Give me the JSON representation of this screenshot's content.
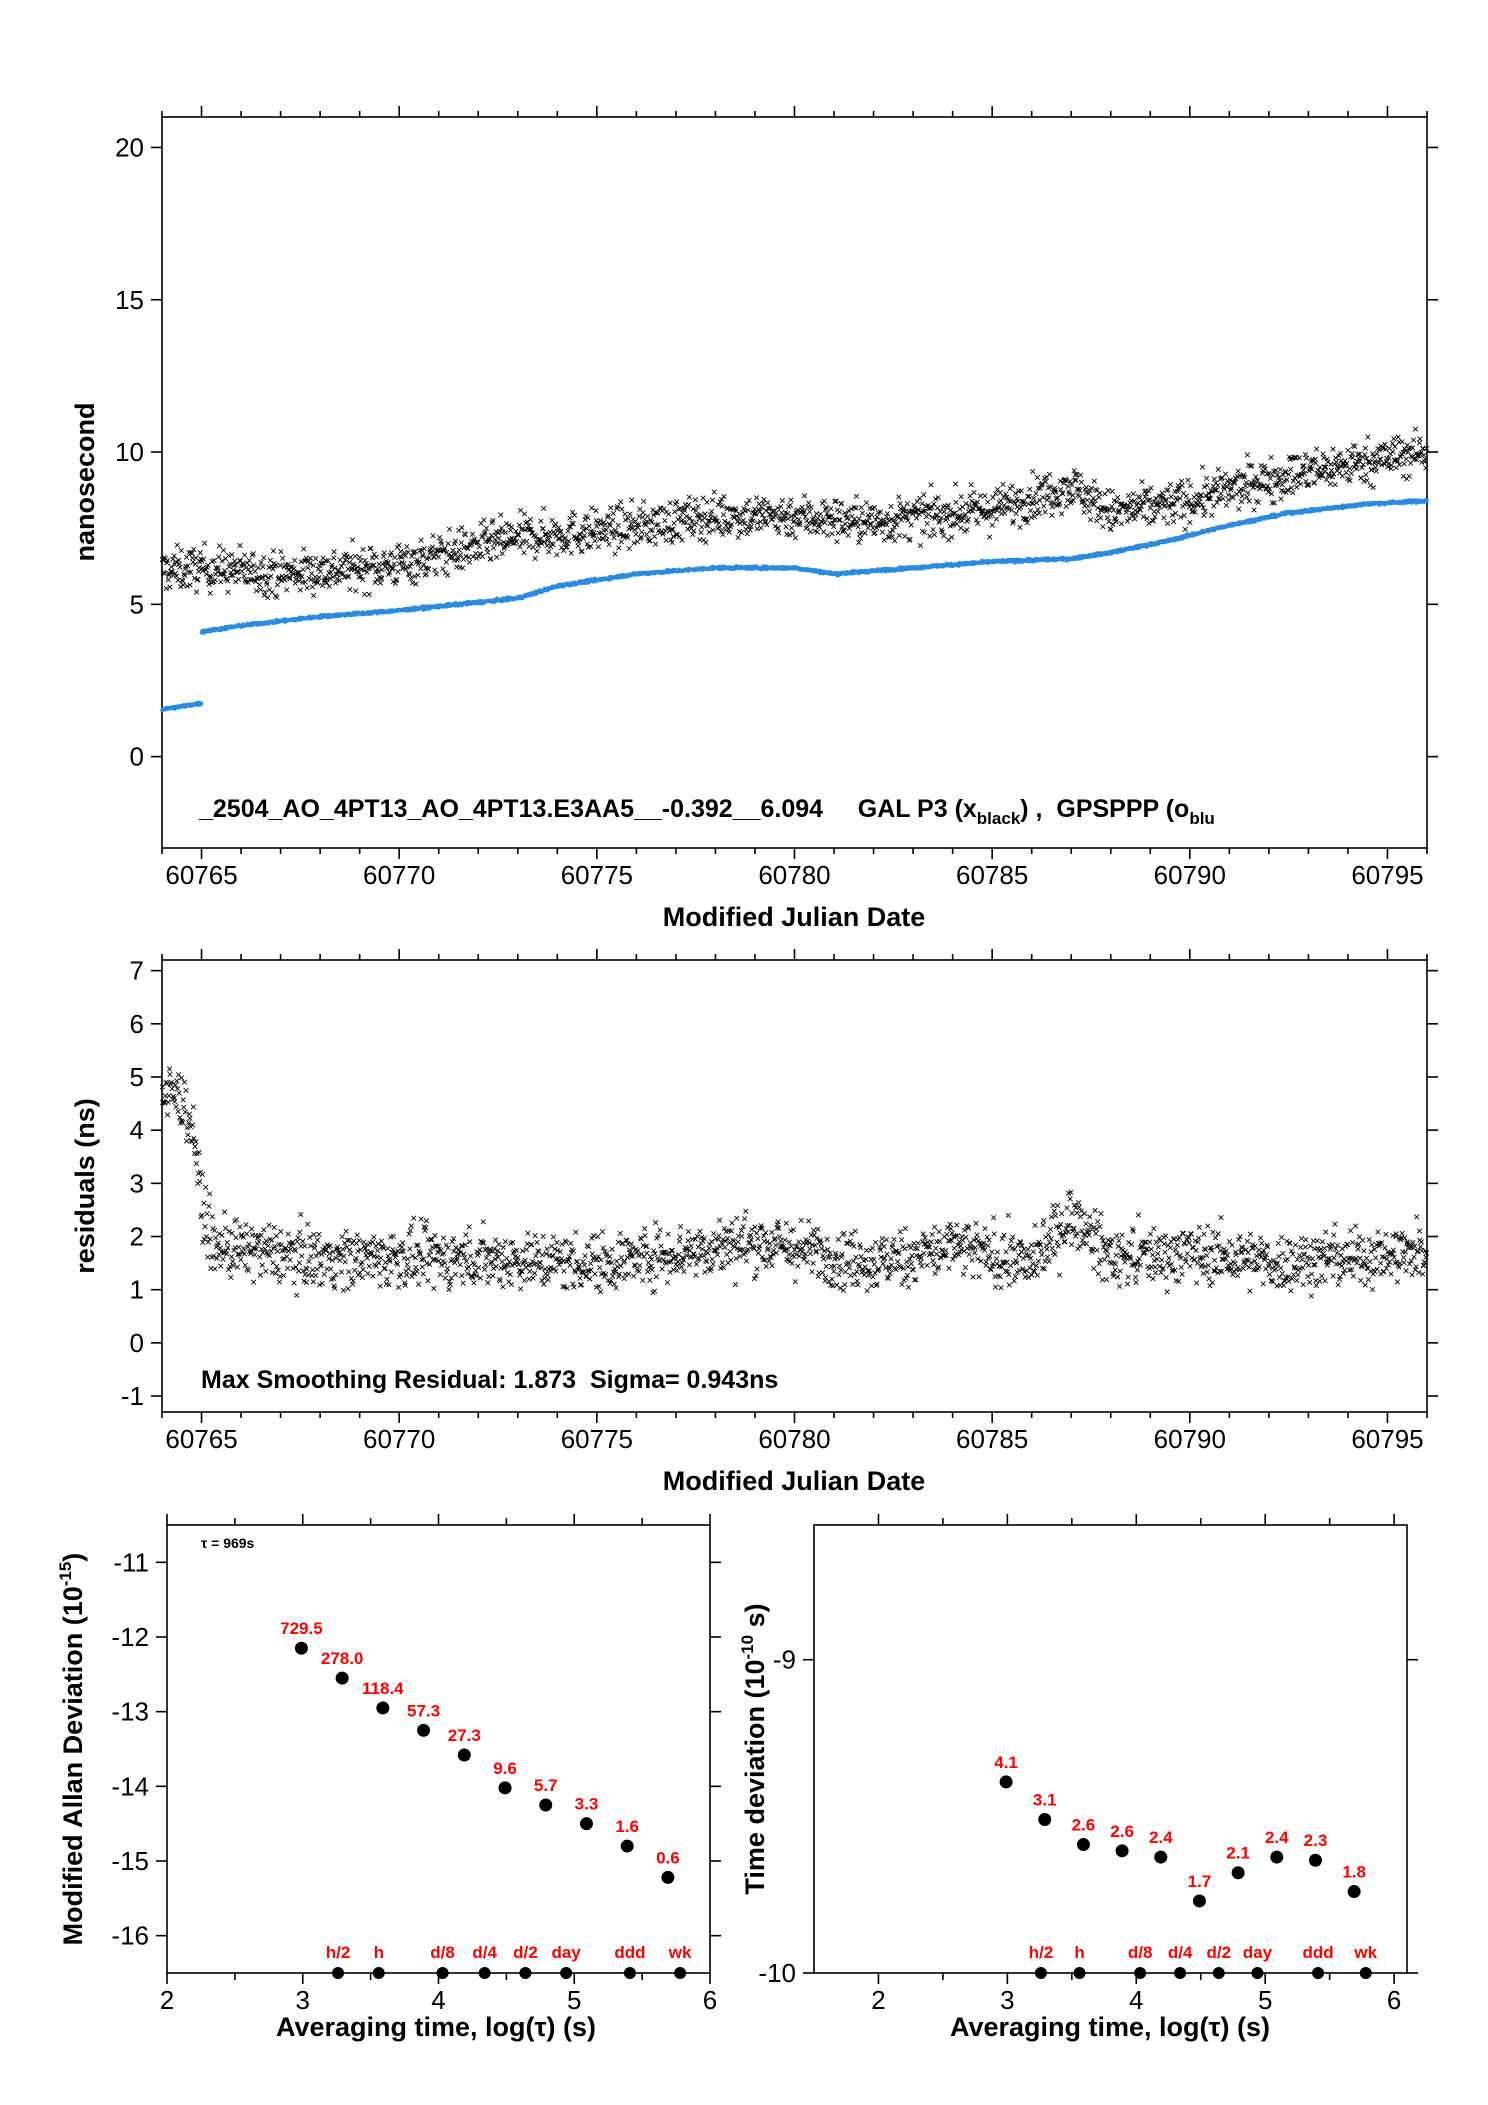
{
  "chart_data": [
    {
      "id": "phase",
      "type": "scatter",
      "xlabel": "Modified Julian Date",
      "ylabel": "nanosecond",
      "xlim": [
        60764.0,
        60796.0
      ],
      "ylim": [
        -3,
        21
      ],
      "xticks": [
        60765,
        60770,
        60775,
        60780,
        60785,
        60790,
        60795
      ],
      "yticks": [
        0,
        5,
        10,
        15,
        20
      ],
      "annotation": {
        "prefix": "_2504_AO_4PT13_AO_4PT13.E3AA5__-0.392__6.094     GAL P3 (x",
        "sub1": "black",
        "middle": ") ,  GPSPPP (o",
        "sub2": "blu"
      },
      "series": [
        {
          "marker": "x",
          "color": "#000000",
          "density_per_day": 60,
          "scatter": 0.65,
          "trend": [
            [
              60764.0,
              6.1
            ],
            [
              60765.0,
              6.2
            ],
            [
              60767.0,
              6.0
            ],
            [
              60770.0,
              6.3
            ],
            [
              60773.0,
              7.2
            ],
            [
              60775.0,
              7.4
            ],
            [
              60778.0,
              7.9
            ],
            [
              60780.0,
              7.9
            ],
            [
              60782.0,
              7.7
            ],
            [
              60785.0,
              8.1
            ],
            [
              60787.0,
              8.9
            ],
            [
              60788.0,
              8.0
            ],
            [
              60790.0,
              8.4
            ],
            [
              60792.0,
              9.1
            ],
            [
              60794.0,
              9.6
            ],
            [
              60796.0,
              10.0
            ]
          ]
        },
        {
          "marker": "o",
          "color": "#2a8be0",
          "density_per_day": 100,
          "scatter": 0.05,
          "segments": [
            [
              [
                60764.0,
                1.55
              ],
              [
                60764.5,
                1.65
              ],
              [
                60765.0,
                1.75
              ]
            ],
            [
              [
                60765.0,
                4.1
              ],
              [
                60766.0,
                4.3
              ],
              [
                60768.0,
                4.6
              ],
              [
                60770.0,
                4.8
              ],
              [
                60773.0,
                5.2
              ],
              [
                60774.0,
                5.6
              ],
              [
                60776.0,
                6.0
              ],
              [
                60778.0,
                6.2
              ],
              [
                60780.0,
                6.2
              ],
              [
                60781.0,
                6.0
              ],
              [
                60783.0,
                6.2
              ],
              [
                60785.0,
                6.4
              ],
              [
                60787.0,
                6.5
              ],
              [
                60788.0,
                6.7
              ],
              [
                60789.5,
                7.1
              ],
              [
                60791.0,
                7.6
              ],
              [
                60792.5,
                8.0
              ],
              [
                60794.5,
                8.3
              ],
              [
                60796.0,
                8.4
              ]
            ]
          ]
        }
      ]
    },
    {
      "id": "residuals",
      "type": "scatter",
      "xlabel": "Modified Julian Date",
      "ylabel": "residuals (ns)",
      "xlim": [
        60764.0,
        60796.0
      ],
      "ylim": [
        -1.3,
        7.2
      ],
      "xticks": [
        60765,
        60770,
        60775,
        60780,
        60785,
        60790,
        60795
      ],
      "yticks": [
        -1,
        0,
        1,
        2,
        3,
        4,
        5,
        6,
        7
      ],
      "annotation": "Max Smoothing Residual: 1.873  Sigma= 0.943ns",
      "series": [
        {
          "marker": "x",
          "color": "#000000",
          "density_per_day": 60,
          "scatter": 0.5,
          "trend": [
            [
              60764.0,
              4.7
            ],
            [
              60764.5,
              4.6
            ],
            [
              60764.8,
              4.0
            ],
            [
              60765.0,
              2.6
            ],
            [
              60765.3,
              1.8
            ],
            [
              60768.0,
              1.6
            ],
            [
              60772.0,
              1.6
            ],
            [
              60775.0,
              1.5
            ],
            [
              60779.0,
              1.9
            ],
            [
              60782.0,
              1.5
            ],
            [
              60784.0,
              1.8
            ],
            [
              60786.0,
              1.5
            ],
            [
              60787.0,
              2.4
            ],
            [
              60788.0,
              1.6
            ],
            [
              60790.0,
              1.7
            ],
            [
              60792.0,
              1.5
            ],
            [
              60794.0,
              1.6
            ],
            [
              60796.0,
              1.7
            ]
          ]
        }
      ]
    },
    {
      "id": "mdev",
      "type": "scatter",
      "xlabel": "Averaging time, log(τ) (s)",
      "ylabel": "Modified Allan Deviation (10",
      "ylabel_sup": "-15",
      "ylabel_end": ")",
      "xlim": [
        2,
        6
      ],
      "ylim": [
        -16.5,
        -10.5
      ],
      "xticks": [
        2,
        3,
        4,
        5,
        6
      ],
      "yticks": [
        -16,
        -15,
        -14,
        -13,
        -12,
        -11
      ],
      "tau_note": "τ = 969s",
      "points": [
        {
          "x": 2.99,
          "y": -12.15,
          "label": "729.5"
        },
        {
          "x": 3.29,
          "y": -12.55,
          "label": "278.0"
        },
        {
          "x": 3.59,
          "y": -12.95,
          "label": "118.4"
        },
        {
          "x": 3.89,
          "y": -13.25,
          "label": "57.3"
        },
        {
          "x": 4.19,
          "y": -13.58,
          "label": "27.3"
        },
        {
          "x": 4.49,
          "y": -14.02,
          "label": "9.6"
        },
        {
          "x": 4.79,
          "y": -14.25,
          "label": "5.7"
        },
        {
          "x": 5.09,
          "y": -14.5,
          "label": "3.3"
        },
        {
          "x": 5.39,
          "y": -14.8,
          "label": "1.6"
        },
        {
          "x": 5.69,
          "y": -15.22,
          "label": "0.6"
        }
      ],
      "ref_marks": [
        {
          "x": 3.26,
          "label": "h/2"
        },
        {
          "x": 3.56,
          "label": "h"
        },
        {
          "x": 4.03,
          "label": "d/8"
        },
        {
          "x": 4.34,
          "label": "d/4"
        },
        {
          "x": 4.64,
          "label": "d/2"
        },
        {
          "x": 4.94,
          "label": "day"
        },
        {
          "x": 5.41,
          "label": "ddd"
        },
        {
          "x": 5.78,
          "label": "wk"
        }
      ]
    },
    {
      "id": "tdev",
      "type": "scatter",
      "xlabel": "Averaging time, log(τ) (s)",
      "ylabel": "Time deviation (10",
      "ylabel_sup": "-10",
      "ylabel_end": " s)",
      "xlim": [
        1.5,
        6.1
      ],
      "ylim": [
        -10.0,
        -8.57
      ],
      "xticks": [
        2,
        3,
        4,
        5,
        6
      ],
      "yticks": [
        -10,
        -9
      ],
      "points": [
        {
          "x": 2.99,
          "y": -9.39,
          "label": "4.1"
        },
        {
          "x": 3.29,
          "y": -9.51,
          "label": "3.1"
        },
        {
          "x": 3.59,
          "y": -9.59,
          "label": "2.6"
        },
        {
          "x": 3.89,
          "y": -9.61,
          "label": "2.6"
        },
        {
          "x": 4.19,
          "y": -9.63,
          "label": "2.4"
        },
        {
          "x": 4.49,
          "y": -9.77,
          "label": "1.7"
        },
        {
          "x": 4.79,
          "y": -9.68,
          "label": "2.1"
        },
        {
          "x": 5.09,
          "y": -9.63,
          "label": "2.4"
        },
        {
          "x": 5.39,
          "y": -9.64,
          "label": "2.3"
        },
        {
          "x": 5.69,
          "y": -9.74,
          "label": "1.8"
        }
      ],
      "ref_marks": [
        {
          "x": 3.26,
          "label": "h/2"
        },
        {
          "x": 3.56,
          "label": "h"
        },
        {
          "x": 4.03,
          "label": "d/8"
        },
        {
          "x": 4.34,
          "label": "d/4"
        },
        {
          "x": 4.64,
          "label": "d/2"
        },
        {
          "x": 4.94,
          "label": "day"
        },
        {
          "x": 5.41,
          "label": "ddd"
        },
        {
          "x": 5.78,
          "label": "wk"
        }
      ]
    }
  ]
}
